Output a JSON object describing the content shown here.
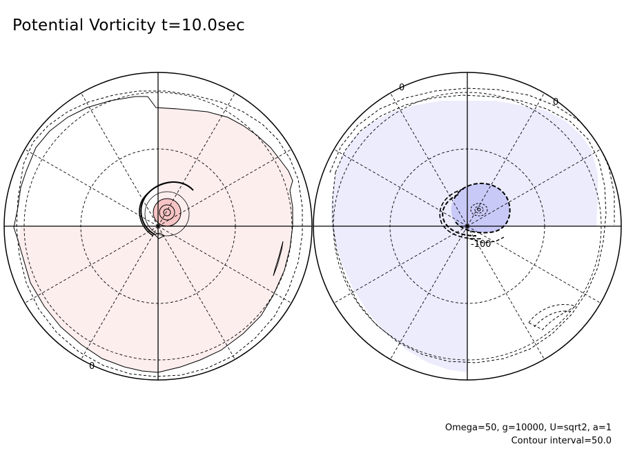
{
  "title": "Potential Vorticity t=10.0sec",
  "params_note": "Omega=50, g=10000, U=sqrt2, a=1",
  "contour_note": "Contour interval=50.0",
  "labels": {
    "left_zero": "0",
    "right_zero_1": "0",
    "right_zero_2": "0",
    "right_minus100": "-100"
  },
  "colors": {
    "positive_fill": "#fdeeee",
    "positive_core": "#f6c4c4",
    "negative_fill": "#ececfd",
    "negative_core": "#c9c9f8",
    "line": "#000000"
  }
}
